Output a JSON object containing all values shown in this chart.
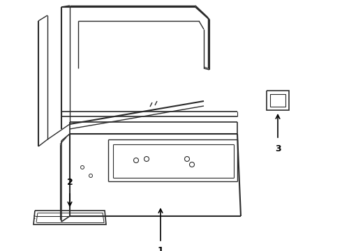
{
  "background_color": "#ffffff",
  "line_color": "#2a2a2a",
  "label_color": "#000000",
  "arrow_color": "#000000"
}
